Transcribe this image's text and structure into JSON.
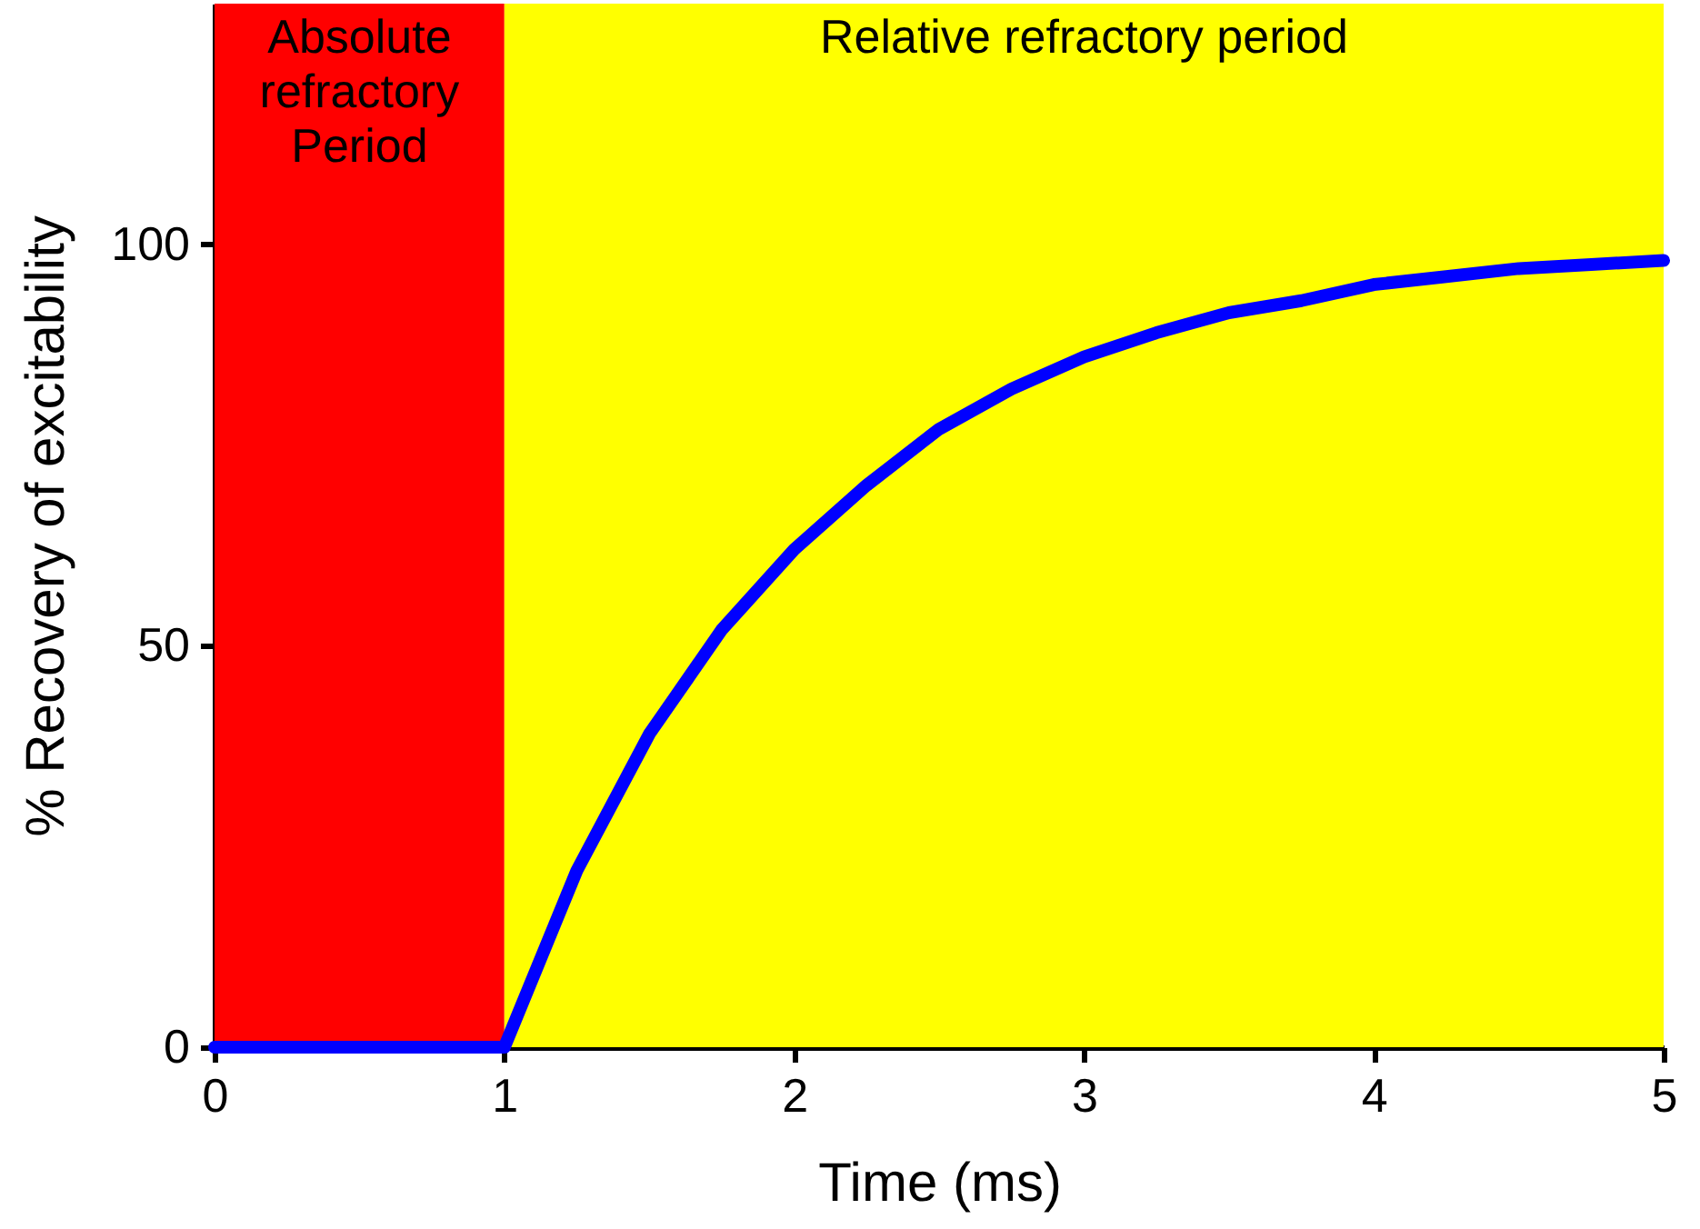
{
  "chart_data": {
    "type": "line",
    "xlabel": "Time (ms)",
    "ylabel": "% Recovery of excitability",
    "x": [
      0,
      1,
      1.25,
      1.5,
      1.75,
      2,
      2.25,
      2.5,
      2.75,
      3,
      3.25,
      3.5,
      3.75,
      4,
      4.25,
      4.5,
      4.75,
      5
    ],
    "series": [
      {
        "color": "#0000ff",
        "values": [
          0,
          0,
          22,
          39,
          52,
          62,
          70,
          77,
          82,
          86,
          89,
          91.5,
          93,
          95,
          96,
          97,
          97.5,
          98
        ]
      }
    ],
    "xlim": [
      0,
      5
    ],
    "ylim": [
      0,
      130
    ],
    "xticks": [
      0,
      1,
      2,
      3,
      4,
      5
    ],
    "yticks": [
      0,
      50,
      100
    ],
    "bands": [
      {
        "axis": "x",
        "from": 0,
        "to": 1,
        "label": "Absolute\nrefractory\nPeriod",
        "color": "#ff0000"
      },
      {
        "axis": "x",
        "from": 1,
        "to": 5,
        "label": "Relative refractory period",
        "color": "#ffff00"
      }
    ],
    "grid": false,
    "marker": "none",
    "line_style": "solid"
  }
}
